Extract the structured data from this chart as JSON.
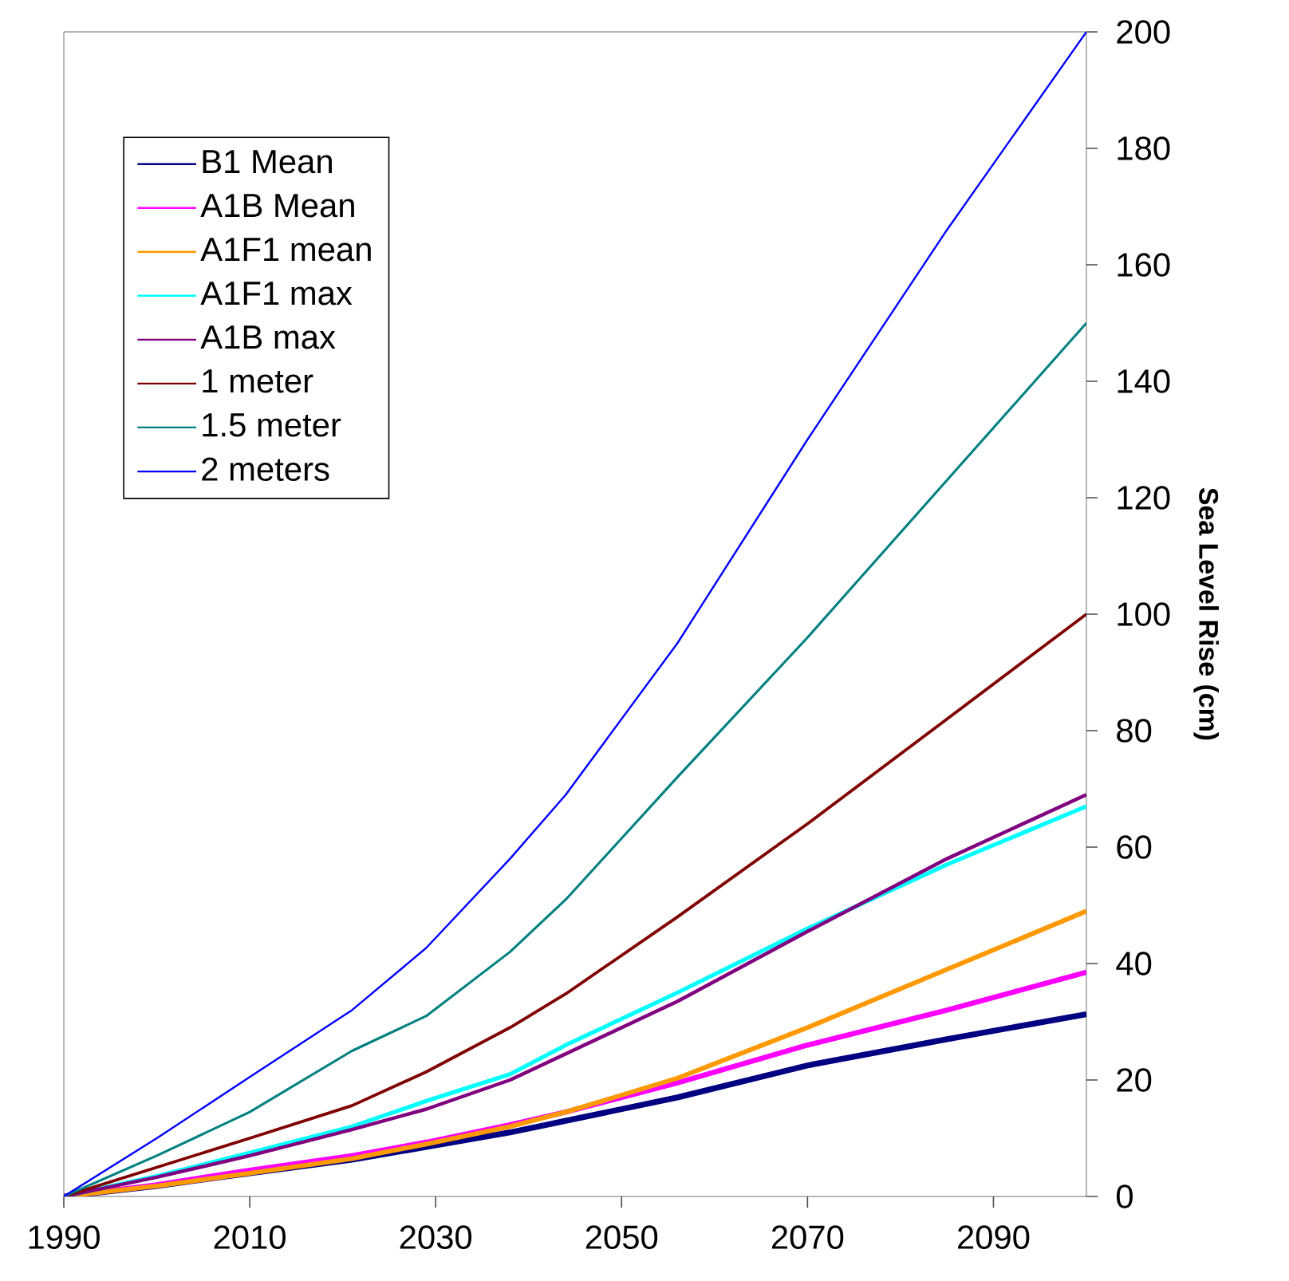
{
  "chart_data": {
    "type": "line",
    "ylabel": "Sea Level Rise (cm)",
    "x": [
      1990,
      2000,
      2010,
      2021,
      2029,
      2038,
      2044,
      2056,
      2070,
      2085,
      2100
    ],
    "series": [
      {
        "name": "B1 Mean",
        "color": "#000080",
        "values": [
          0,
          1.8,
          4,
          6.3,
          8.5,
          11,
          13,
          17,
          22.5,
          27,
          31.3
        ]
      },
      {
        "name": "A1B Mean",
        "color": "#ff00ff",
        "values": [
          0,
          2,
          4.5,
          7,
          9.3,
          12.3,
          14.5,
          19.5,
          26,
          32,
          38.5
        ]
      },
      {
        "name": "A1F1 mean",
        "color": "#ff9900",
        "values": [
          0,
          1.8,
          4,
          6.5,
          9,
          12,
          14.5,
          20.3,
          29,
          39,
          49
        ]
      },
      {
        "name": "A1F1 max",
        "color": "#00ffff",
        "values": [
          0,
          3.5,
          7.5,
          12,
          16.4,
          21,
          26,
          35,
          46,
          57,
          67
        ]
      },
      {
        "name": "A1B max",
        "color": "#800080",
        "values": [
          0,
          3.3,
          7,
          11.5,
          15,
          20,
          24.5,
          33.5,
          45.5,
          58,
          69
        ]
      },
      {
        "name": "1 meter",
        "color": "#800000",
        "values": [
          0,
          5,
          10,
          15.6,
          21.4,
          29,
          34.8,
          48,
          64,
          82,
          100
        ]
      },
      {
        "name": "1.5 meter",
        "color": "#008080",
        "values": [
          0,
          7,
          14.5,
          25,
          31,
          42,
          51,
          72,
          96,
          123,
          150
        ]
      },
      {
        "name": "2 meters",
        "color": "#0000ff",
        "values": [
          0,
          10,
          20.5,
          32,
          42.7,
          58,
          69,
          95,
          130,
          166,
          200
        ]
      }
    ],
    "xlim": [
      1990,
      2100
    ],
    "xticks": [
      1990,
      2010,
      2030,
      2050,
      2070,
      2090
    ],
    "ylim": [
      0,
      200
    ],
    "yticks": [
      0,
      20,
      40,
      60,
      80,
      100,
      120,
      140,
      160,
      180,
      200
    ],
    "grid": false,
    "legend": "top left",
    "marker": "none",
    "line_style": "solid"
  }
}
